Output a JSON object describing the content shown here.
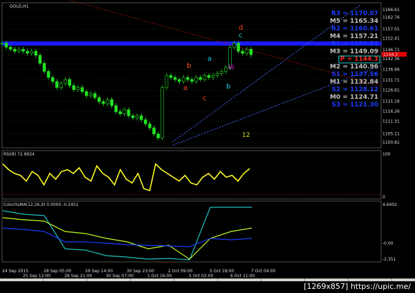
{
  "window": {
    "symbol": "GOLD,H1"
  },
  "pivots": [
    {
      "label": "R3",
      "value": "1170.07",
      "color": "#1a3cff"
    },
    {
      "label": "M5",
      "value": "1165.34",
      "color": "#c0c0c0"
    },
    {
      "label": "R2",
      "value": "1160.61",
      "color": "#1a3cff"
    },
    {
      "label": "M4",
      "value": "1157.21",
      "color": "#c0c0c0"
    },
    {
      "label": "R1",
      "value": "1153.81",
      "color": "#1a3cff"
    },
    {
      "label": "M3",
      "value": "1149.09",
      "color": "#c0c0c0"
    },
    {
      "label": "P",
      "value": "1144.3",
      "color": "#ff2020"
    },
    {
      "label": "M2",
      "value": "1140.96",
      "color": "#c0c0c0"
    },
    {
      "label": "S1",
      "value": "1137.56",
      "color": "#1a3cff"
    },
    {
      "label": "M1",
      "value": "1132.84",
      "color": "#c0c0c0"
    },
    {
      "label": "S2",
      "value": "1128.12",
      "color": "#1a3cff"
    },
    {
      "label": "M0",
      "value": "1124.71",
      "color": "#c0c0c0"
    },
    {
      "label": "S3",
      "value": "1121.30",
      "color": "#1a3cff"
    }
  ],
  "wave_labels": [
    {
      "text": "d",
      "color": "#ff4020"
    },
    {
      "text": "c",
      "color": "#20d0e0"
    },
    {
      "text": "b",
      "color": "#ff6020"
    },
    {
      "text": "a",
      "color": "#ff4020"
    },
    {
      "text": "c",
      "color": "#ff4020"
    },
    {
      "text": "a",
      "color": "#20d0e0"
    },
    {
      "text": "b",
      "color": "#20d0e0"
    },
    {
      "text": "iii",
      "color": "#ff30ff"
    },
    {
      "text": "12",
      "color": "#e0e020"
    }
  ],
  "rsi": {
    "label": "RSI(8) 72.8924",
    "axis": [
      "100",
      "0"
    ]
  },
  "osma": {
    "label": "ColorOsMA(12,26,9) 0.0000 -0.2451",
    "axis": [
      "4.6402",
      "-0.00",
      "-2.351"
    ]
  },
  "credit": "[1269x857] https://upic.me/",
  "chart_data": {
    "type": "candlestick",
    "title": "GOLD,H1",
    "price_axis": [
      "1166.61",
      "1162.76",
      "1157.01",
      "1152.41",
      "1146.71",
      "1142.36",
      "1136.96",
      "1131.71",
      "1126.61",
      "1121.16",
      "1116.26",
      "1111.31",
      "1105.11",
      "1100.81"
    ],
    "ylim": [
      1100.81,
      1166.61
    ],
    "current_price": "1144.3",
    "time_axis": [
      "24 Sep 2015",
      "25 Sep 12:00",
      "28 Sep 05:00",
      "28 Sep 21:00",
      "29 Sep 14:00",
      "30 Sep 07:00",
      "30 Sep 23:00",
      "1 Oct 16:00",
      "2 Oct 09:00",
      "5 Oct 02:00",
      "5 Oct 18:00",
      "6 Oct 11:00",
      "7 Oct 04:00"
    ],
    "close": [
      1150,
      1148,
      1147,
      1146,
      1147,
      1146,
      1145,
      1146,
      1144,
      1140,
      1136,
      1133,
      1131,
      1128,
      1130,
      1132,
      1129,
      1127,
      1128,
      1126,
      1124,
      1125,
      1123,
      1121,
      1120,
      1122,
      1119,
      1116,
      1115,
      1117,
      1114,
      1113,
      1114,
      1112,
      1110,
      1108,
      1105,
      1103,
      1128,
      1134,
      1133,
      1132,
      1131,
      1133,
      1132,
      1131,
      1133,
      1132,
      1134,
      1133,
      1134,
      1135,
      1136,
      1138,
      1148,
      1150,
      1146,
      1145,
      1147,
      1144.3
    ],
    "rsi": [
      85,
      70,
      60,
      55,
      40,
      65,
      55,
      30,
      60,
      45,
      65,
      70,
      60,
      75,
      50,
      40,
      80,
      60,
      50,
      30,
      70,
      45,
      35,
      60,
      20,
      15,
      85,
      70,
      60,
      50,
      40,
      55,
      35,
      30,
      50,
      60,
      45,
      65,
      50,
      55,
      40,
      60,
      72.9
    ]
  }
}
